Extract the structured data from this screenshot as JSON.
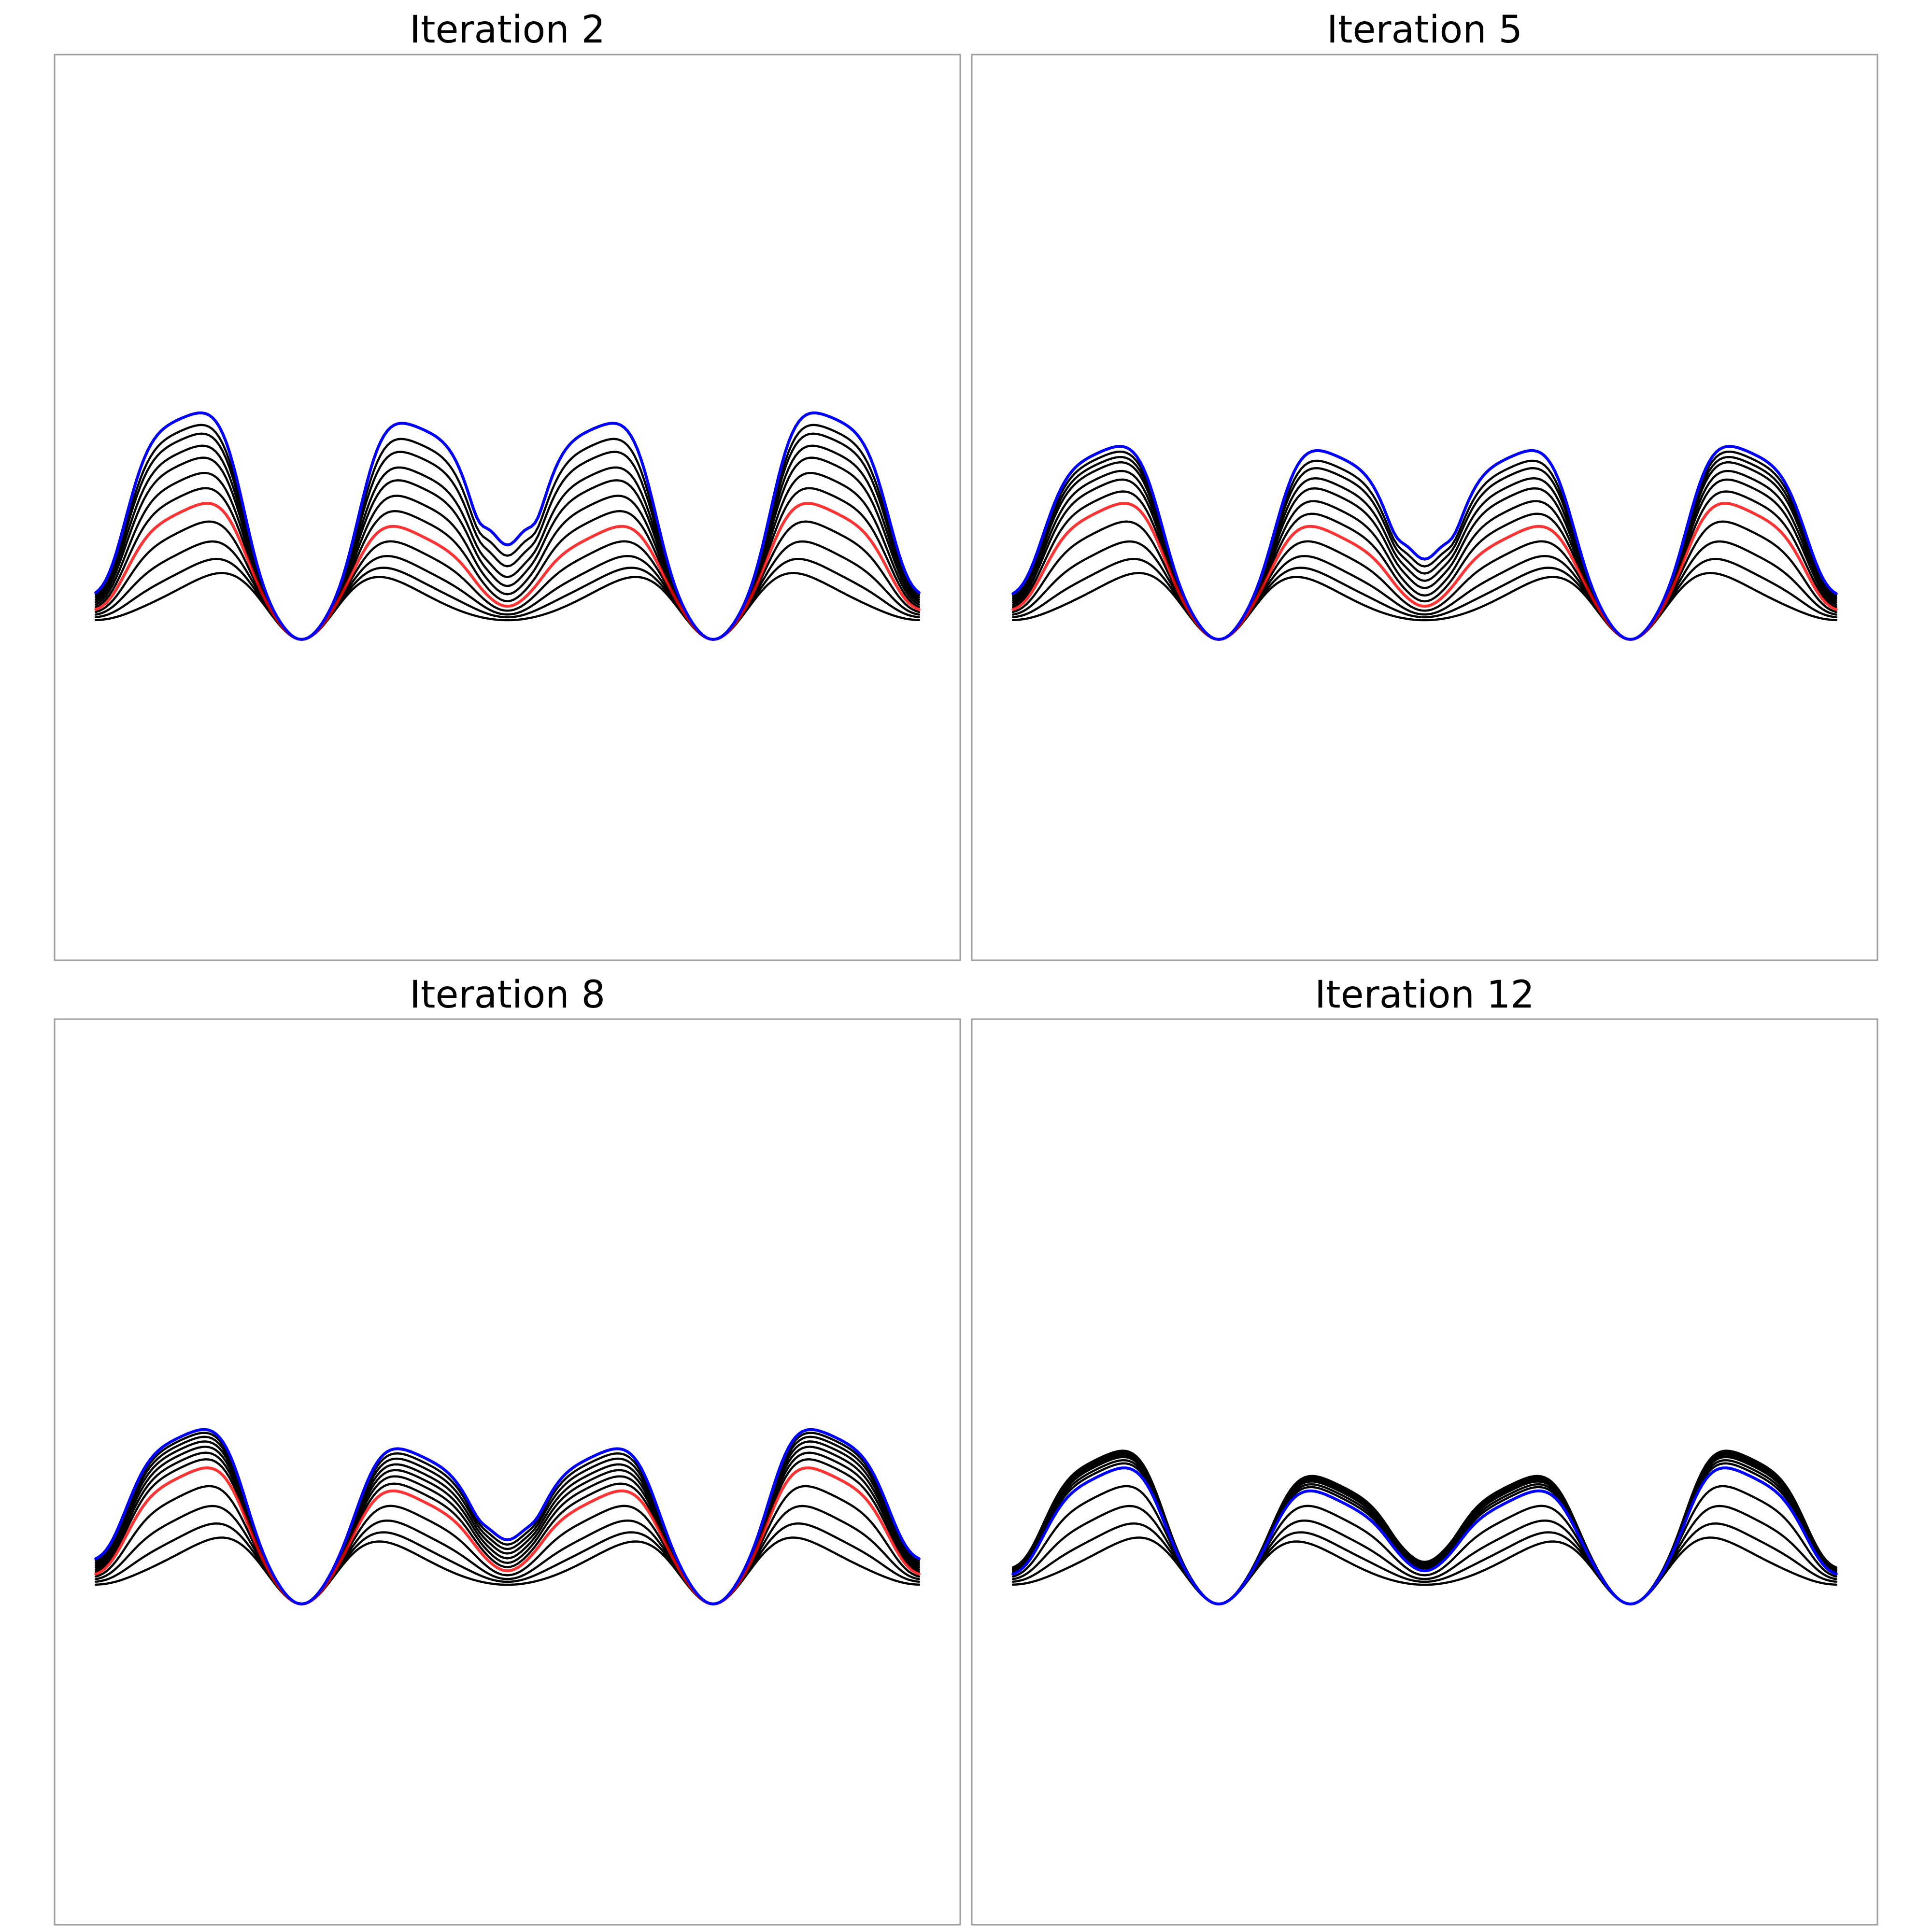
{
  "chart_data": [
    {
      "type": "line",
      "title": "Iteration 2",
      "xlabel": "",
      "ylabel": "",
      "axes_visible": false,
      "grid": false,
      "colors": {
        "fixed": "#000000",
        "current": "#0000ff",
        "reference": "#ff0000"
      },
      "series": [
        {
          "role": "fixed",
          "values": {
            "a": 3.04,
            "b": 0.07,
            "c": 0.0,
            "d": 0.0
          }
        },
        {
          "role": "fixed",
          "values": {
            "a": 3.1,
            "b": 0.27,
            "c": 0.15,
            "d": 0.0
          }
        },
        {
          "role": "fixed",
          "values": {
            "a": 3.15,
            "b": 0.52,
            "c": 0.35,
            "d": 0.0
          }
        },
        {
          "role": "fixed",
          "values": {
            "a": 3.2,
            "b": 0.8,
            "c": 0.6,
            "d": 0.03
          }
        },
        {
          "role": "reference",
          "values": {
            "a": 3.25,
            "b": 1.05,
            "c": 0.85,
            "d": 0.08
          }
        },
        {
          "role": "fixed",
          "values": {
            "a": 3.3,
            "b": 1.25,
            "c": 1.1,
            "d": 0.15
          }
        },
        {
          "role": "fixed",
          "values": {
            "a": 3.35,
            "b": 1.45,
            "c": 1.35,
            "d": 0.28
          }
        },
        {
          "role": "fixed",
          "values": {
            "a": 3.4,
            "b": 1.65,
            "c": 1.6,
            "d": 0.45
          }
        },
        {
          "role": "fixed",
          "values": {
            "a": 3.45,
            "b": 1.8,
            "c": 1.8,
            "d": 0.65
          }
        },
        {
          "role": "fixed",
          "values": {
            "a": 3.5,
            "b": 1.95,
            "c": 2.05,
            "d": 0.9
          }
        },
        {
          "role": "fixed",
          "values": {
            "a": 3.55,
            "b": 2.05,
            "c": 2.25,
            "d": 1.15
          }
        },
        {
          "role": "current",
          "values": {
            "a": 3.6,
            "b": 2.2,
            "c": 2.5,
            "d": 1.4
          }
        }
      ]
    },
    {
      "type": "line",
      "title": "Iteration 5",
      "xlabel": "",
      "ylabel": "",
      "axes_visible": false,
      "grid": false,
      "colors": {
        "fixed": "#000000",
        "current": "#0000ff",
        "reference": "#ff0000"
      },
      "series": [
        {
          "role": "fixed",
          "values": {
            "a": 3.04,
            "b": 0.07,
            "c": 0.0,
            "d": 0.0
          }
        },
        {
          "role": "fixed",
          "values": {
            "a": 3.1,
            "b": 0.27,
            "c": 0.15,
            "d": 0.0
          }
        },
        {
          "role": "fixed",
          "values": {
            "a": 3.15,
            "b": 0.52,
            "c": 0.35,
            "d": 0.0
          }
        },
        {
          "role": "fixed",
          "values": {
            "a": 3.2,
            "b": 0.8,
            "c": 0.6,
            "d": 0.03
          }
        },
        {
          "role": "reference",
          "values": {
            "a": 3.25,
            "b": 1.05,
            "c": 0.85,
            "d": 0.08
          }
        },
        {
          "role": "fixed",
          "values": {
            "a": 3.3,
            "b": 1.2,
            "c": 1.05,
            "d": 0.15
          }
        },
        {
          "role": "fixed",
          "values": {
            "a": 3.35,
            "b": 1.35,
            "c": 1.25,
            "d": 0.25
          }
        },
        {
          "role": "fixed",
          "values": {
            "a": 3.4,
            "b": 1.45,
            "c": 1.45,
            "d": 0.4
          }
        },
        {
          "role": "fixed",
          "values": {
            "a": 3.45,
            "b": 1.55,
            "c": 1.6,
            "d": 0.55
          }
        },
        {
          "role": "fixed",
          "values": {
            "a": 3.5,
            "b": 1.6,
            "c": 1.75,
            "d": 0.7
          }
        },
        {
          "role": "fixed",
          "values": {
            "a": 3.55,
            "b": 1.65,
            "c": 1.85,
            "d": 0.85
          }
        },
        {
          "role": "current",
          "values": {
            "a": 3.6,
            "b": 1.7,
            "c": 2.0,
            "d": 1.0
          }
        }
      ]
    },
    {
      "type": "line",
      "title": "Iteration 8",
      "xlabel": "",
      "ylabel": "",
      "axes_visible": false,
      "grid": false,
      "colors": {
        "fixed": "#000000",
        "current": "#0000ff",
        "reference": "#ff0000"
      },
      "series": [
        {
          "role": "fixed",
          "values": {
            "a": 3.04,
            "b": 0.07,
            "c": 0.0,
            "d": 0.0
          }
        },
        {
          "role": "fixed",
          "values": {
            "a": 3.1,
            "b": 0.27,
            "c": 0.15,
            "d": 0.0
          }
        },
        {
          "role": "fixed",
          "values": {
            "a": 3.15,
            "b": 0.52,
            "c": 0.35,
            "d": 0.0
          }
        },
        {
          "role": "fixed",
          "values": {
            "a": 3.2,
            "b": 0.8,
            "c": 0.6,
            "d": 0.03
          }
        },
        {
          "role": "reference",
          "values": {
            "a": 3.25,
            "b": 1.05,
            "c": 0.85,
            "d": 0.08
          }
        },
        {
          "role": "fixed",
          "values": {
            "a": 3.3,
            "b": 1.15,
            "c": 0.95,
            "d": 0.12
          }
        },
        {
          "role": "fixed",
          "values": {
            "a": 3.35,
            "b": 1.22,
            "c": 1.05,
            "d": 0.18
          }
        },
        {
          "role": "fixed",
          "values": {
            "a": 3.4,
            "b": 1.28,
            "c": 1.13,
            "d": 0.25
          }
        },
        {
          "role": "fixed",
          "values": {
            "a": 3.45,
            "b": 1.33,
            "c": 1.2,
            "d": 0.33
          }
        },
        {
          "role": "fixed",
          "values": {
            "a": 3.5,
            "b": 1.37,
            "c": 1.27,
            "d": 0.4
          }
        },
        {
          "role": "fixed",
          "values": {
            "a": 3.55,
            "b": 1.4,
            "c": 1.33,
            "d": 0.47
          }
        },
        {
          "role": "current",
          "values": {
            "a": 3.6,
            "b": 1.42,
            "c": 1.38,
            "d": 0.55
          }
        }
      ]
    },
    {
      "type": "line",
      "title": "Iteration 12",
      "xlabel": "",
      "ylabel": "",
      "axes_visible": false,
      "grid": false,
      "colors": {
        "fixed": "#000000",
        "current": "#0000ff",
        "reference": "#ff0000"
      },
      "series": [
        {
          "role": "fixed",
          "values": {
            "a": 3.04,
            "b": 0.07,
            "c": 0.0,
            "d": 0.0
          }
        },
        {
          "role": "fixed",
          "values": {
            "a": 3.1,
            "b": 0.27,
            "c": 0.15,
            "d": 0.0
          }
        },
        {
          "role": "fixed",
          "values": {
            "a": 3.15,
            "b": 0.52,
            "c": 0.35,
            "d": 0.0
          }
        },
        {
          "role": "fixed",
          "values": {
            "a": 3.2,
            "b": 0.8,
            "c": 0.6,
            "d": 0.03
          }
        },
        {
          "role": "fixed",
          "values": {
            "a": 3.25,
            "b": 1.05,
            "c": 0.85,
            "d": 0.08
          }
        },
        {
          "role": "fixed",
          "values": {
            "a": 3.28,
            "b": 1.1,
            "c": 0.9,
            "d": 0.1
          }
        },
        {
          "role": "fixed",
          "values": {
            "a": 3.31,
            "b": 1.13,
            "c": 0.93,
            "d": 0.11
          }
        },
        {
          "role": "fixed",
          "values": {
            "a": 3.34,
            "b": 1.16,
            "c": 0.96,
            "d": 0.12
          }
        },
        {
          "role": "fixed",
          "values": {
            "a": 3.36,
            "b": 1.18,
            "c": 0.98,
            "d": 0.13
          }
        },
        {
          "role": "fixed",
          "values": {
            "a": 3.38,
            "b": 1.2,
            "c": 1.0,
            "d": 0.14
          }
        },
        {
          "role": "fixed",
          "values": {
            "a": 3.4,
            "b": 1.22,
            "c": 1.02,
            "d": 0.15
          }
        },
        {
          "role": "current",
          "values": {
            "a": 3.25,
            "b": 1.05,
            "c": 0.85,
            "d": 0.08
          }
        }
      ]
    }
  ]
}
